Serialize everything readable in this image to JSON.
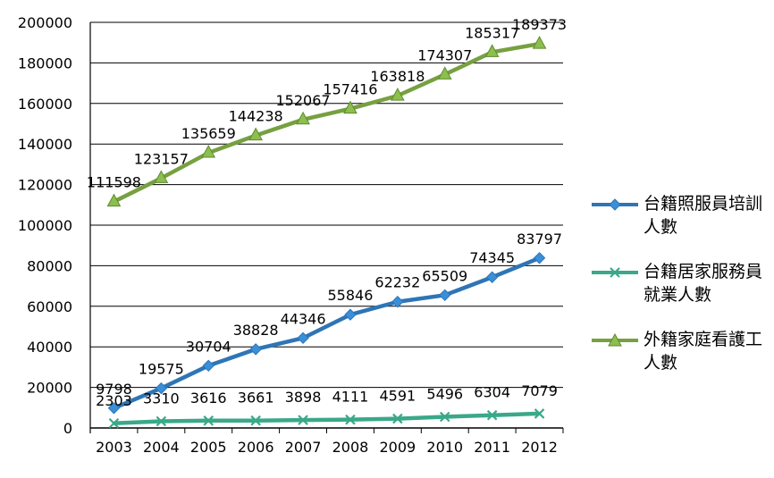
{
  "chart_data": {
    "type": "line",
    "title": "",
    "xlabel": "",
    "ylabel": "",
    "x": [
      "2003",
      "2004",
      "2005",
      "2006",
      "2007",
      "2008",
      "2009",
      "2010",
      "2011",
      "2012"
    ],
    "ylim": [
      0,
      200000
    ],
    "yticks": [
      "0",
      "20000",
      "40000",
      "60000",
      "80000",
      "100000",
      "120000",
      "140000",
      "160000",
      "180000",
      "200000"
    ],
    "grid": true,
    "legend_position": "right",
    "series": [
      {
        "name": "台籍照服員培訓人數",
        "color": "#2e75b6",
        "marker": "diamond",
        "values": [
          9798,
          19575,
          30704,
          38828,
          44346,
          55846,
          62232,
          65509,
          74345,
          83797
        ]
      },
      {
        "name": "台籍居家服務員就業人數",
        "color": "#3aa889",
        "marker": "x",
        "values": [
          2303,
          3310,
          3616,
          3661,
          3898,
          4111,
          4591,
          5496,
          6304,
          7079
        ]
      },
      {
        "name": "外籍家庭看護工人數",
        "color": "#77a040",
        "marker": "triangle",
        "values": [
          111598,
          123157,
          135659,
          144238,
          152067,
          157416,
          163818,
          174307,
          185317,
          189373
        ]
      }
    ]
  },
  "legend": {
    "items": [
      {
        "line1": "台籍照服員培訓",
        "line2": "人數"
      },
      {
        "line1": "台籍居家服務員",
        "line2": "就業人數"
      },
      {
        "line1": "外籍家庭看護工",
        "line2": "人數"
      }
    ]
  }
}
